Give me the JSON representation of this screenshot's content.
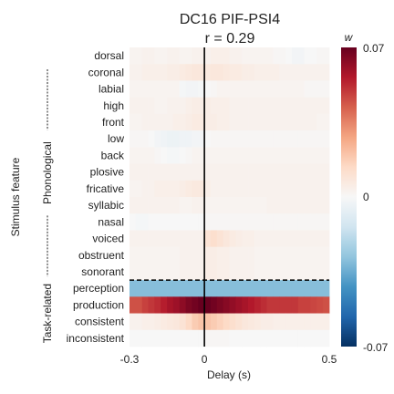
{
  "chart_data": {
    "type": "heatmap",
    "title": "DC16 PIF-PSI4",
    "subtitle": "r = 0.29",
    "xlabel": "Delay (s)",
    "ylabel": "Stimulus feature",
    "x_ticks": [
      "-0.3",
      "0",
      "0.5"
    ],
    "xlim": [
      -0.3,
      0.5
    ],
    "zero_line": 0,
    "colorbar": {
      "label": "w",
      "ticks": [
        "0.07",
        "0",
        "-0.07"
      ],
      "vmin": -0.07,
      "vmax": 0.07,
      "colormap": "RdBu_r"
    },
    "groups": [
      {
        "name": "Phonological",
        "features": [
          "dorsal",
          "coronal",
          "labial",
          "high",
          "front",
          "low",
          "back",
          "plosive",
          "fricative",
          "syllabic",
          "nasal",
          "voiced",
          "obstruent",
          "sonorant"
        ]
      },
      {
        "name": "Task-related",
        "features": [
          "perception",
          "production",
          "consistent",
          "inconsistent"
        ]
      }
    ],
    "features": [
      "dorsal",
      "coronal",
      "labial",
      "high",
      "front",
      "low",
      "back",
      "plosive",
      "fricative",
      "syllabic",
      "nasal",
      "voiced",
      "obstruent",
      "sonorant",
      "perception",
      "production",
      "consistent",
      "inconsistent"
    ],
    "delays": [
      -0.3,
      -0.275,
      -0.25,
      -0.225,
      -0.2,
      -0.175,
      -0.15,
      -0.125,
      -0.1,
      -0.075,
      -0.05,
      -0.025,
      0,
      0.025,
      0.05,
      0.075,
      0.1,
      0.125,
      0.15,
      0.175,
      0.2,
      0.225,
      0.25,
      0.275,
      0.3,
      0.325,
      0.35,
      0.375,
      0.4,
      0.425,
      0.45,
      0.475,
      0.5
    ],
    "values": [
      [
        0.002,
        0.002,
        0.003,
        0.003,
        0.002,
        0.002,
        0.003,
        0.003,
        0.002,
        0.002,
        0.003,
        0.003,
        0.003,
        0.004,
        0.004,
        0.004,
        0.003,
        0.003,
        0.002,
        0.002,
        0.002,
        0.002,
        0.002,
        0.001,
        0.001,
        0.0,
        -0.002,
        -0.002,
        0.0,
        0.0,
        0.001,
        0.001
      ],
      [
        0.003,
        0.003,
        0.004,
        0.004,
        0.004,
        0.004,
        0.005,
        0.005,
        0.006,
        0.007,
        0.008,
        0.008,
        0.007,
        0.008,
        0.008,
        0.007,
        0.006,
        0.006,
        0.005,
        0.005,
        0.004,
        0.004,
        0.004,
        0.004,
        0.003,
        0.003,
        0.003,
        0.003,
        0.003,
        0.003,
        0.003,
        0.003
      ],
      [
        0.002,
        0.002,
        0.002,
        0.002,
        0.002,
        0.002,
        0.002,
        0.002,
        -0.001,
        -0.002,
        -0.002,
        -0.001,
        0.0,
        0.001,
        0.002,
        0.002,
        0.002,
        0.002,
        0.002,
        0.002,
        0.002,
        0.002,
        0.002,
        0.002,
        0.002,
        0.002,
        0.002,
        0.002,
        0.001,
        0.001,
        0.001,
        0.001
      ],
      [
        0.003,
        0.003,
        0.003,
        0.003,
        0.002,
        0.002,
        0.003,
        0.003,
        0.003,
        0.004,
        0.005,
        0.005,
        0.005,
        0.004,
        0.004,
        0.004,
        0.003,
        0.003,
        0.003,
        0.003,
        0.003,
        0.003,
        0.003,
        0.003,
        0.003,
        0.003,
        0.003,
        0.003,
        0.003,
        0.003,
        0.003,
        0.003
      ],
      [
        0.002,
        0.002,
        0.003,
        0.003,
        0.003,
        0.003,
        0.003,
        0.004,
        0.004,
        0.005,
        0.006,
        0.006,
        0.005,
        0.005,
        0.004,
        0.004,
        0.003,
        0.003,
        0.003,
        0.003,
        0.003,
        0.003,
        0.003,
        0.003,
        0.003,
        0.003,
        0.003,
        0.003,
        0.003,
        0.003,
        0.002,
        0.002
      ],
      [
        0.001,
        0.001,
        0.001,
        0.0,
        -0.002,
        -0.003,
        -0.004,
        -0.004,
        -0.003,
        -0.003,
        -0.002,
        -0.002,
        0.0,
        0.001,
        0.001,
        0.001,
        0.001,
        0.001,
        0.001,
        0.001,
        0.001,
        0.001,
        0.001,
        0.001,
        0.001,
        0.001,
        0.001,
        0.001,
        0.001,
        0.001,
        0.001,
        0.001
      ],
      [
        0.002,
        0.002,
        0.002,
        0.002,
        0.001,
        0.0,
        -0.001,
        -0.001,
        0.0,
        0.001,
        0.002,
        0.002,
        0.002,
        0.002,
        0.002,
        0.002,
        0.002,
        0.002,
        0.002,
        0.002,
        0.002,
        0.002,
        0.002,
        0.002,
        0.002,
        0.002,
        0.002,
        0.002,
        0.002,
        0.002,
        0.002,
        0.002
      ],
      [
        0.003,
        0.003,
        0.003,
        0.003,
        0.003,
        0.003,
        0.003,
        0.003,
        0.003,
        0.003,
        0.003,
        0.003,
        0.003,
        0.003,
        0.003,
        0.003,
        0.003,
        0.003,
        0.003,
        0.003,
        0.003,
        0.003,
        0.003,
        0.003,
        0.003,
        0.003,
        0.003,
        0.003,
        0.003,
        0.003,
        0.003,
        0.003
      ],
      [
        0.002,
        0.002,
        0.003,
        0.003,
        0.004,
        0.004,
        0.004,
        0.004,
        0.005,
        0.006,
        0.007,
        0.007,
        0.004,
        0.003,
        0.003,
        0.003,
        0.003,
        0.003,
        0.003,
        0.003,
        0.003,
        0.003,
        0.003,
        0.003,
        0.003,
        0.003,
        0.003,
        0.003,
        0.003,
        0.003,
        0.003,
        0.003
      ],
      [
        0.003,
        0.003,
        0.003,
        0.003,
        0.003,
        0.003,
        0.003,
        0.003,
        0.002,
        0.002,
        0.003,
        0.003,
        0.002,
        0.002,
        0.002,
        0.002,
        0.002,
        0.002,
        0.002,
        0.002,
        0.002,
        0.002,
        0.003,
        0.003,
        0.003,
        0.003,
        0.003,
        0.003,
        0.003,
        0.003,
        0.003,
        0.003
      ],
      [
        0.0,
        -0.001,
        -0.001,
        0.0,
        0.0,
        0.0,
        0.0,
        0.0,
        0.0,
        0.0,
        0.0,
        0.0,
        0.001,
        0.001,
        0.001,
        0.001,
        0.001,
        0.001,
        0.001,
        0.001,
        0.001,
        0.001,
        0.001,
        0.001,
        0.001,
        0.001,
        0.001,
        0.001,
        0.001,
        0.001,
        0.001,
        0.001
      ],
      [
        0.003,
        0.003,
        0.003,
        0.003,
        0.003,
        0.003,
        0.003,
        0.003,
        0.003,
        0.003,
        0.003,
        0.003,
        0.01,
        0.012,
        0.01,
        0.008,
        0.006,
        0.005,
        0.004,
        0.004,
        0.003,
        0.003,
        0.003,
        0.003,
        0.003,
        0.003,
        0.003,
        0.003,
        0.003,
        0.003,
        0.003,
        0.003
      ],
      [
        0.002,
        0.002,
        0.002,
        0.002,
        0.002,
        0.002,
        0.002,
        0.002,
        0.003,
        0.003,
        0.003,
        0.003,
        0.005,
        0.005,
        0.004,
        0.004,
        0.003,
        0.003,
        0.003,
        0.003,
        0.002,
        0.002,
        0.002,
        0.002,
        0.002,
        0.002,
        0.002,
        0.002,
        0.002,
        0.002,
        0.002,
        0.002
      ],
      [
        0.002,
        0.002,
        0.002,
        0.002,
        0.002,
        0.002,
        0.002,
        0.002,
        0.003,
        0.003,
        0.003,
        0.003,
        0.005,
        0.005,
        0.004,
        0.004,
        0.003,
        0.003,
        0.003,
        0.003,
        0.002,
        0.002,
        0.002,
        0.002,
        0.002,
        0.002,
        0.002,
        0.002,
        0.002,
        0.002,
        0.002,
        0.002
      ],
      [
        -0.03,
        -0.03,
        -0.03,
        -0.03,
        -0.03,
        -0.03,
        -0.03,
        -0.03,
        -0.03,
        -0.03,
        -0.03,
        -0.03,
        -0.03,
        -0.03,
        -0.03,
        -0.03,
        -0.03,
        -0.03,
        -0.03,
        -0.03,
        -0.03,
        -0.03,
        -0.03,
        -0.03,
        -0.03,
        -0.03,
        -0.03,
        -0.03,
        -0.03,
        -0.03,
        -0.03,
        -0.03
      ],
      [
        0.045,
        0.045,
        0.048,
        0.05,
        0.052,
        0.055,
        0.058,
        0.06,
        0.063,
        0.066,
        0.068,
        0.07,
        0.07,
        0.068,
        0.066,
        0.064,
        0.062,
        0.06,
        0.058,
        0.056,
        0.054,
        0.052,
        0.05,
        0.05,
        0.05,
        0.05,
        0.05,
        0.048,
        0.048,
        0.047,
        0.046,
        0.045
      ],
      [
        0.003,
        0.003,
        0.004,
        0.004,
        0.005,
        0.006,
        0.007,
        0.008,
        0.01,
        0.014,
        0.018,
        0.02,
        0.02,
        0.018,
        0.016,
        0.014,
        0.012,
        0.01,
        0.008,
        0.007,
        0.006,
        0.005,
        0.005,
        0.004,
        0.004,
        0.004,
        0.004,
        0.004,
        0.004,
        0.004,
        0.004,
        0.004
      ],
      [
        0.0,
        0.0,
        0.0,
        0.0,
        0.0,
        0.0,
        0.0,
        0.0,
        0.0,
        0.0,
        0.0,
        0.0,
        0.001,
        0.001,
        0.001,
        0.001,
        0.0,
        0.0,
        0.0,
        0.0,
        0.0,
        0.0,
        0.0,
        0.0,
        0.0,
        0.0,
        0.0,
        0.0,
        0.0,
        0.0,
        0.0,
        0.0
      ]
    ]
  }
}
